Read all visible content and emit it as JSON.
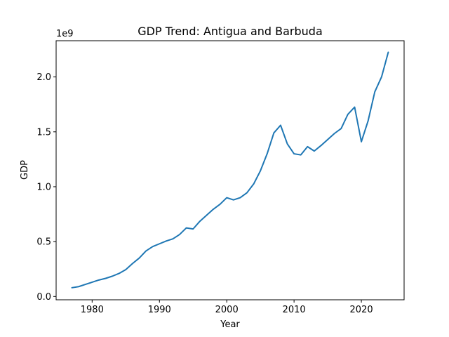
{
  "chart_data": {
    "type": "line",
    "title": "GDP Trend: Antigua and Barbuda",
    "xlabel": "Year",
    "ylabel": "GDP",
    "y_offset_label": "1e9",
    "xlim": [
      1974.65,
      2026.35
    ],
    "ylim": [
      -0.03,
      2.33
    ],
    "x_ticks": [
      1980,
      1990,
      2000,
      2010,
      2020
    ],
    "x_tick_labels": [
      "1980",
      "1990",
      "2000",
      "2010",
      "2020"
    ],
    "y_ticks": [
      0.0,
      0.5,
      1.0,
      1.5,
      2.0
    ],
    "y_tick_labels": [
      "0.0",
      "0.5",
      "1.0",
      "1.5",
      "2.0"
    ],
    "grid": false,
    "line_color": "#1f77b4",
    "series": [
      {
        "x": [
          1977,
          1978,
          1979,
          1980,
          1981,
          1982,
          1983,
          1984,
          1985,
          1986,
          1987,
          1988,
          1989,
          1990,
          1991,
          1992,
          1993,
          1994,
          1995,
          1996,
          1997,
          1998,
          1999,
          2000,
          2001,
          2002,
          2003,
          2004,
          2005,
          2006,
          2007,
          2008,
          2009,
          2010,
          2011,
          2012,
          2013,
          2014,
          2015,
          2016,
          2017,
          2018,
          2019,
          2020,
          2021,
          2022,
          2023,
          2024
        ],
        "values": [
          0.08,
          0.09,
          0.11,
          0.13,
          0.15,
          0.165,
          0.185,
          0.21,
          0.245,
          0.3,
          0.35,
          0.415,
          0.455,
          0.48,
          0.505,
          0.525,
          0.565,
          0.625,
          0.615,
          0.685,
          0.74,
          0.795,
          0.84,
          0.9,
          0.88,
          0.9,
          0.945,
          1.025,
          1.145,
          1.3,
          1.49,
          1.56,
          1.39,
          1.3,
          1.29,
          1.365,
          1.325,
          1.375,
          1.43,
          1.485,
          1.53,
          1.66,
          1.725,
          1.41,
          1.6,
          1.865,
          2.0,
          2.225
        ]
      }
    ]
  }
}
